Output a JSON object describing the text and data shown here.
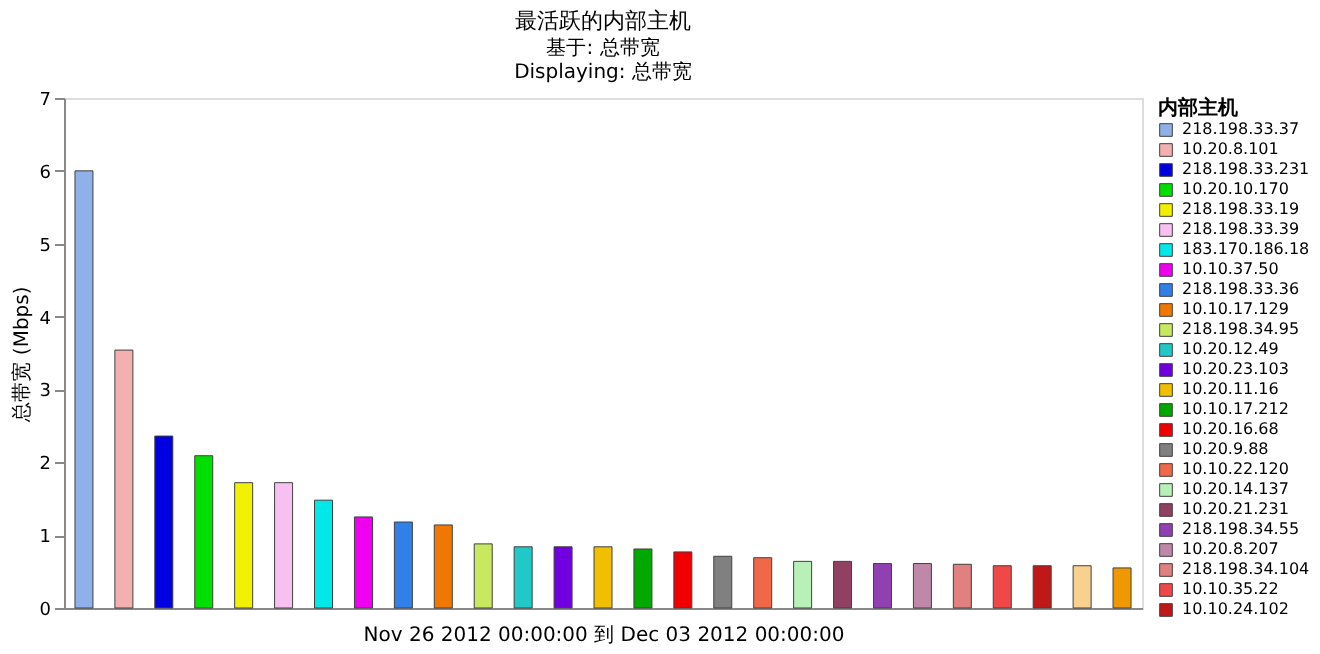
{
  "chart_data": {
    "type": "bar",
    "title": "最活跃的内部主机",
    "subtitle": [
      "基于: 总带宽",
      "Displaying: 总带宽"
    ],
    "ylabel": "总带宽 (Mbps)",
    "xlabel": "Nov 26 2012  00:00:00  到  Dec 03 2012  00:00:00",
    "legend_title": "内部主机",
    "categories": [
      null,
      null,
      null,
      null,
      null,
      null,
      null,
      null,
      null,
      null,
      null,
      null,
      null,
      null,
      null,
      null,
      null,
      null,
      null,
      null,
      null,
      null,
      null,
      null,
      null,
      null,
      null
    ],
    "series": [
      {
        "name": "218.198.33.37",
        "color": "#8fb0e8",
        "values": [
          6.0,
          null,
          null,
          null,
          null,
          null,
          null,
          null,
          null,
          null,
          null,
          null,
          null,
          null,
          null,
          null,
          null,
          null,
          null,
          null,
          null,
          null,
          null,
          null,
          null,
          null,
          null
        ]
      },
      {
        "name": "10.20.8.101",
        "color": "#f4b0b0",
        "values": [
          null,
          3.54,
          null,
          null,
          null,
          null,
          null,
          null,
          null,
          null,
          null,
          null,
          null,
          null,
          null,
          null,
          null,
          null,
          null,
          null,
          null,
          null,
          null,
          null,
          null,
          null,
          null
        ]
      },
      {
        "name": "218.198.33.231",
        "color": "#0000e0",
        "values": [
          null,
          null,
          2.36,
          null,
          null,
          null,
          null,
          null,
          null,
          null,
          null,
          null,
          null,
          null,
          null,
          null,
          null,
          null,
          null,
          null,
          null,
          null,
          null,
          null,
          null,
          null,
          null
        ]
      },
      {
        "name": "10.20.10.170",
        "color": "#00e000",
        "values": [
          null,
          null,
          null,
          2.09,
          null,
          null,
          null,
          null,
          null,
          null,
          null,
          null,
          null,
          null,
          null,
          null,
          null,
          null,
          null,
          null,
          null,
          null,
          null,
          null,
          null,
          null,
          null
        ]
      },
      {
        "name": "218.198.33.19",
        "color": "#f0f000",
        "values": [
          null,
          null,
          null,
          null,
          1.72,
          null,
          null,
          null,
          null,
          null,
          null,
          null,
          null,
          null,
          null,
          null,
          null,
          null,
          null,
          null,
          null,
          null,
          null,
          null,
          null,
          null,
          null
        ]
      },
      {
        "name": "218.198.33.39",
        "color": "#f8c0f0",
        "values": [
          null,
          null,
          null,
          null,
          null,
          1.72,
          null,
          null,
          null,
          null,
          null,
          null,
          null,
          null,
          null,
          null,
          null,
          null,
          null,
          null,
          null,
          null,
          null,
          null,
          null,
          null,
          null
        ]
      },
      {
        "name": "183.170.186.18",
        "color": "#00e8e8",
        "values": [
          null,
          null,
          null,
          null,
          null,
          null,
          1.48,
          null,
          null,
          null,
          null,
          null,
          null,
          null,
          null,
          null,
          null,
          null,
          null,
          null,
          null,
          null,
          null,
          null,
          null,
          null,
          null
        ]
      },
      {
        "name": "10.10.37.50",
        "color": "#f000f0",
        "values": [
          null,
          null,
          null,
          null,
          null,
          null,
          null,
          1.25,
          null,
          null,
          null,
          null,
          null,
          null,
          null,
          null,
          null,
          null,
          null,
          null,
          null,
          null,
          null,
          null,
          null,
          null,
          null
        ]
      },
      {
        "name": "218.198.33.36",
        "color": "#3080e8",
        "values": [
          null,
          null,
          null,
          null,
          null,
          null,
          null,
          null,
          1.18,
          null,
          null,
          null,
          null,
          null,
          null,
          null,
          null,
          null,
          null,
          null,
          null,
          null,
          null,
          null,
          null,
          null,
          null
        ]
      },
      {
        "name": "10.10.17.129",
        "color": "#f07800",
        "values": [
          null,
          null,
          null,
          null,
          null,
          null,
          null,
          null,
          null,
          1.14,
          null,
          null,
          null,
          null,
          null,
          null,
          null,
          null,
          null,
          null,
          null,
          null,
          null,
          null,
          null,
          null,
          null
        ]
      },
      {
        "name": "218.198.34.95",
        "color": "#c8e860",
        "values": [
          null,
          null,
          null,
          null,
          null,
          null,
          null,
          null,
          null,
          null,
          0.88,
          null,
          null,
          null,
          null,
          null,
          null,
          null,
          null,
          null,
          null,
          null,
          null,
          null,
          null,
          null,
          null
        ]
      },
      {
        "name": "10.20.12.49",
        "color": "#20c8c8",
        "values": [
          null,
          null,
          null,
          null,
          null,
          null,
          null,
          null,
          null,
          null,
          null,
          0.84,
          null,
          null,
          null,
          null,
          null,
          null,
          null,
          null,
          null,
          null,
          null,
          null,
          null,
          null,
          null
        ]
      },
      {
        "name": "10.20.23.103",
        "color": "#7000e0",
        "values": [
          null,
          null,
          null,
          null,
          null,
          null,
          null,
          null,
          null,
          null,
          null,
          null,
          0.84,
          null,
          null,
          null,
          null,
          null,
          null,
          null,
          null,
          null,
          null,
          null,
          null,
          null,
          null
        ]
      },
      {
        "name": "10.20.11.16",
        "color": "#f0c000",
        "values": [
          null,
          null,
          null,
          null,
          null,
          null,
          null,
          null,
          null,
          null,
          null,
          null,
          null,
          0.84,
          null,
          null,
          null,
          null,
          null,
          null,
          null,
          null,
          null,
          null,
          null,
          null,
          null
        ]
      },
      {
        "name": "10.10.17.212",
        "color": "#00a800",
        "values": [
          null,
          null,
          null,
          null,
          null,
          null,
          null,
          null,
          null,
          null,
          null,
          null,
          null,
          null,
          0.81,
          null,
          null,
          null,
          null,
          null,
          null,
          null,
          null,
          null,
          null,
          null,
          null
        ]
      },
      {
        "name": "10.20.16.68",
        "color": "#f00000",
        "values": [
          null,
          null,
          null,
          null,
          null,
          null,
          null,
          null,
          null,
          null,
          null,
          null,
          null,
          null,
          null,
          0.77,
          null,
          null,
          null,
          null,
          null,
          null,
          null,
          null,
          null,
          null,
          null
        ]
      },
      {
        "name": "10.20.9.88",
        "color": "#808080",
        "values": [
          null,
          null,
          null,
          null,
          null,
          null,
          null,
          null,
          null,
          null,
          null,
          null,
          null,
          null,
          null,
          null,
          0.71,
          null,
          null,
          null,
          null,
          null,
          null,
          null,
          null,
          null,
          null
        ]
      },
      {
        "name": "10.10.22.120",
        "color": "#f06848",
        "values": [
          null,
          null,
          null,
          null,
          null,
          null,
          null,
          null,
          null,
          null,
          null,
          null,
          null,
          null,
          null,
          null,
          null,
          0.69,
          null,
          null,
          null,
          null,
          null,
          null,
          null,
          null,
          null
        ]
      },
      {
        "name": "10.20.14.137",
        "color": "#b8f0b8",
        "values": [
          null,
          null,
          null,
          null,
          null,
          null,
          null,
          null,
          null,
          null,
          null,
          null,
          null,
          null,
          null,
          null,
          null,
          null,
          0.64,
          null,
          null,
          null,
          null,
          null,
          null,
          null,
          null
        ]
      },
      {
        "name": "10.20.21.231",
        "color": "#904060",
        "values": [
          null,
          null,
          null,
          null,
          null,
          null,
          null,
          null,
          null,
          null,
          null,
          null,
          null,
          null,
          null,
          null,
          null,
          null,
          null,
          0.64,
          null,
          null,
          null,
          null,
          null,
          null,
          null
        ]
      },
      {
        "name": "218.198.34.55",
        "color": "#9040b0",
        "values": [
          null,
          null,
          null,
          null,
          null,
          null,
          null,
          null,
          null,
          null,
          null,
          null,
          null,
          null,
          null,
          null,
          null,
          null,
          null,
          null,
          0.61,
          null,
          null,
          null,
          null,
          null,
          null
        ]
      },
      {
        "name": "10.20.8.207",
        "color": "#c088a8",
        "values": [
          null,
          null,
          null,
          null,
          null,
          null,
          null,
          null,
          null,
          null,
          null,
          null,
          null,
          null,
          null,
          null,
          null,
          null,
          null,
          null,
          null,
          0.61,
          null,
          null,
          null,
          null,
          null
        ]
      },
      {
        "name": "218.198.34.104",
        "color": "#e08080",
        "values": [
          null,
          null,
          null,
          null,
          null,
          null,
          null,
          null,
          null,
          null,
          null,
          null,
          null,
          null,
          null,
          null,
          null,
          null,
          null,
          null,
          null,
          null,
          0.6,
          null,
          null,
          null,
          null
        ]
      },
      {
        "name": "10.10.35.22",
        "color": "#f04848",
        "values": [
          null,
          null,
          null,
          null,
          null,
          null,
          null,
          null,
          null,
          null,
          null,
          null,
          null,
          null,
          null,
          null,
          null,
          null,
          null,
          null,
          null,
          null,
          null,
          0.58,
          null,
          null,
          null
        ]
      },
      {
        "name": "10.10.24.102",
        "color": "#c01818",
        "values": [
          null,
          null,
          null,
          null,
          null,
          null,
          null,
          null,
          null,
          null,
          null,
          null,
          null,
          null,
          null,
          null,
          null,
          null,
          null,
          null,
          null,
          null,
          null,
          null,
          0.58,
          null,
          null
        ]
      },
      {
        "color": "#f8d090",
        "values": [
          null,
          null,
          null,
          null,
          null,
          null,
          null,
          null,
          null,
          null,
          null,
          null,
          null,
          null,
          null,
          null,
          null,
          null,
          null,
          null,
          null,
          null,
          null,
          null,
          null,
          0.58,
          null
        ]
      },
      {
        "color": "#f09800",
        "values": [
          null,
          null,
          null,
          null,
          null,
          null,
          null,
          null,
          null,
          null,
          null,
          null,
          null,
          null,
          null,
          null,
          null,
          null,
          null,
          null,
          null,
          null,
          null,
          null,
          null,
          null,
          0.55
        ]
      }
    ],
    "ylim": [
      0,
      7
    ],
    "yticks": [
      0,
      1,
      2,
      3,
      4,
      5,
      6,
      7
    ],
    "tick_labels": "y",
    "grid": false,
    "legend": "right"
  }
}
